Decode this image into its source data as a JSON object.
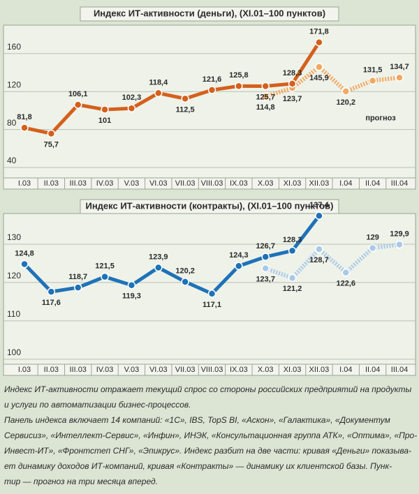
{
  "chart_data": [
    {
      "type": "line",
      "title": "Индекс ИТ-активности (деньги), (XI.01–100 пунктов)",
      "categories": [
        "I.03",
        "II.03",
        "III.03",
        "IV.03",
        "V.03",
        "VI.03",
        "VII.03",
        "VIII.03",
        "IX.03",
        "X.03",
        "XI.03",
        "XII.03",
        "I.04",
        "II.04",
        "III.04"
      ],
      "series": [
        {
          "color": "#d4601c",
          "label_color": "#2a2a2a",
          "dashed": false,
          "values": [
            81.8,
            75.7,
            106.1,
            101,
            102.3,
            118.4,
            112.5,
            121.6,
            125.8,
            125.7,
            128.3,
            171.8,
            null,
            null,
            null
          ],
          "value_labels": [
            "81,8",
            "75,7",
            "106,1",
            "101",
            "102,3",
            "118,4",
            "112,5",
            "121,6",
            "125,8",
            "125,7",
            "128,3",
            "171,8",
            null,
            null,
            null
          ]
        },
        {
          "color": "#f2a861",
          "label_color": "#c8501a",
          "dashed": true,
          "values": [
            null,
            null,
            null,
            null,
            null,
            null,
            null,
            null,
            null,
            114.8,
            123.7,
            145.9,
            120.2,
            131.5,
            134.7
          ],
          "value_labels": [
            null,
            null,
            null,
            null,
            null,
            null,
            null,
            null,
            null,
            "114,8",
            "123,7",
            "145,9",
            "120,2",
            "131,5",
            "134,7"
          ]
        }
      ],
      "annotation": "прогноз",
      "ylim": [
        29,
        190
      ],
      "yticks": [
        40,
        80,
        120,
        160
      ],
      "grid": true
    },
    {
      "type": "line",
      "title": "Индекс ИТ-активности (контракты), (XI.01–100 пунктов)",
      "categories": [
        "I.03",
        "II.03",
        "III.03",
        "IV.03",
        "V.03",
        "VI.03",
        "VII.03",
        "VIII.03",
        "IX.03",
        "X.03",
        "XI.03",
        "XII.03",
        "I.04",
        "II.04",
        "III.04"
      ],
      "series": [
        {
          "color": "#1e72b8",
          "label_color": "#2a2a2a",
          "dashed": false,
          "values": [
            124.8,
            117.6,
            118.7,
            121.5,
            119.3,
            123.9,
            120.2,
            117.1,
            124.3,
            126.7,
            128.3,
            137.4,
            null,
            null,
            null
          ],
          "value_labels": [
            "124,8",
            "117,6",
            "118,7",
            "121,5",
            "119,3",
            "123,9",
            "120,2",
            "117,1",
            "124,3",
            "126,7",
            "128,3",
            "137,4",
            null,
            null,
            null
          ]
        },
        {
          "color": "#a9c9e6",
          "label_color": "#1e72b8",
          "dashed": true,
          "values": [
            null,
            null,
            null,
            null,
            null,
            null,
            null,
            null,
            null,
            123.7,
            121.2,
            128.7,
            122.6,
            129,
            129.9
          ],
          "value_labels": [
            null,
            null,
            null,
            null,
            null,
            null,
            null,
            null,
            null,
            "123,7",
            "121,2",
            "128,7",
            "122,6",
            "129",
            "129,9"
          ]
        }
      ],
      "ylim": [
        98.7,
        138
      ],
      "yticks": [
        100,
        110,
        120,
        130
      ],
      "grid": true
    }
  ],
  "caption": [
    "Индекс ИТ-активности отражает текущий спрос со стороны российских предприятий на продукты",
    "и услуги по автоматизации бизнес-процессов.",
    "Панель индекса включает 14 компаний: «1С», IBS, TopS BI, «Аскон», «Галактика», «Документум",
    "Сервисиз», «Интеллект-Сервис», «Инфин», ИНЭК, «Консультационная группа АТК», «Оптима», «Про-",
    "Инвест-ИТ», «Фронтстеп СНГ», «Эпикрус». Индекс разбит на две части: кривая «Деньги» показыва-",
    "ет динамику доходов ИТ-компаний, кривая «Контракты» — динамику их клиентской базы. Пунк-",
    "тир — прогноз на три месяца вперед."
  ]
}
